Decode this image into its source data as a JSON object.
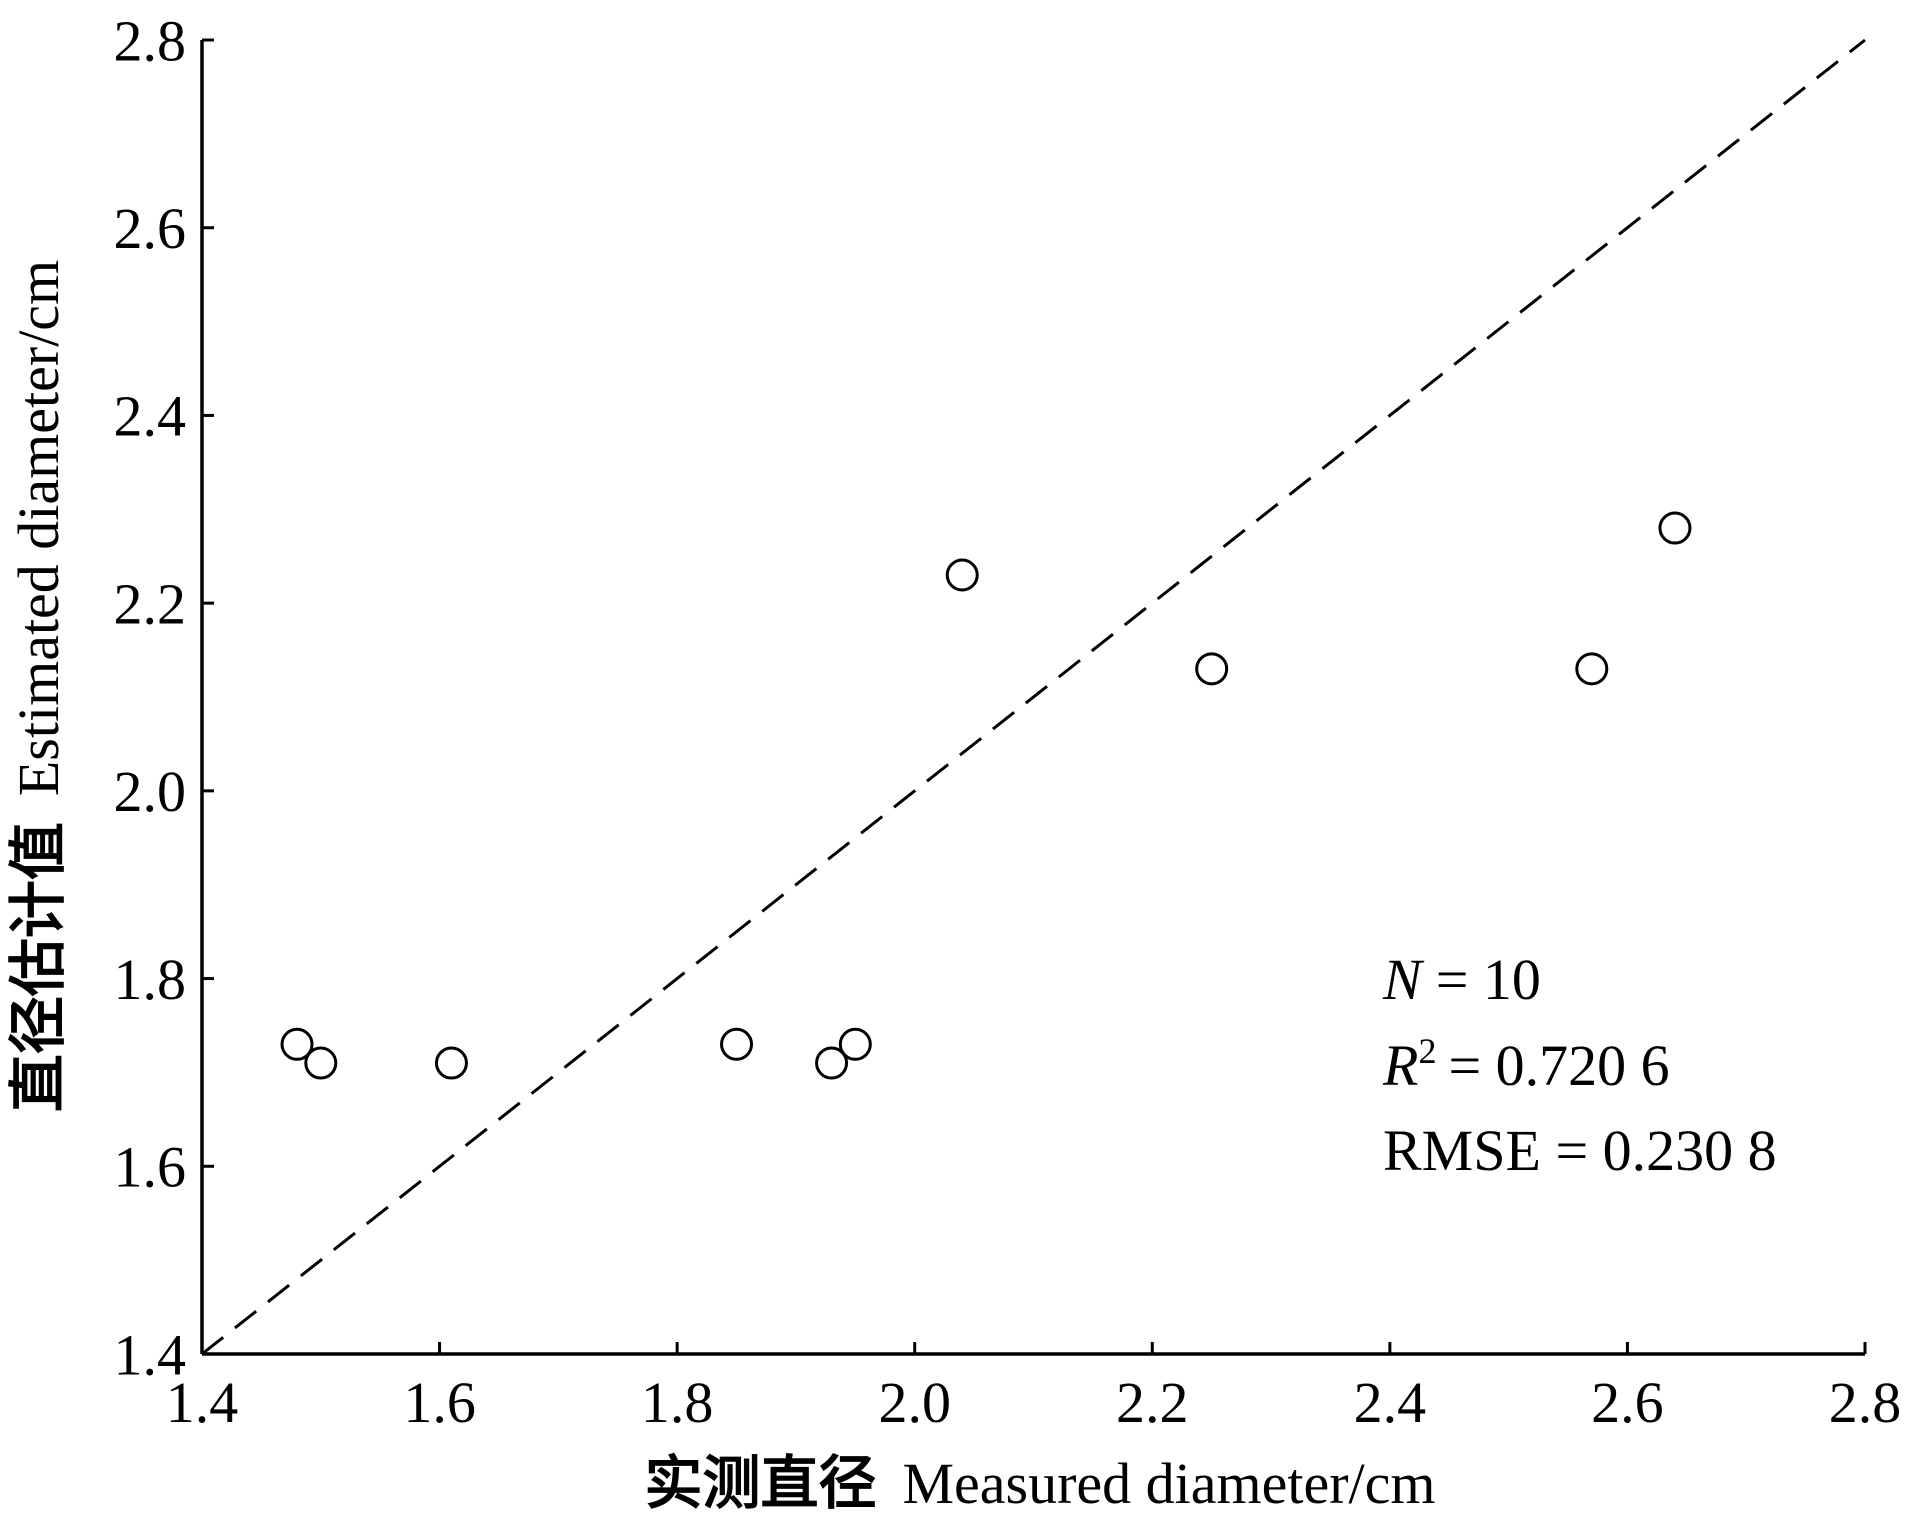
{
  "chart_data": {
    "type": "scatter",
    "x": [
      1.48,
      1.5,
      1.61,
      1.85,
      1.93,
      1.95,
      2.04,
      2.25,
      2.57,
      2.64
    ],
    "y": [
      1.73,
      1.71,
      1.71,
      1.73,
      1.71,
      1.73,
      2.23,
      2.13,
      2.13,
      2.28
    ],
    "xlim": [
      1.4,
      2.8
    ],
    "ylim": [
      1.4,
      2.8
    ],
    "xticks": [
      "1.4",
      "1.6",
      "1.8",
      "2.0",
      "2.2",
      "2.4",
      "2.6",
      "2.8"
    ],
    "yticks": [
      "1.4",
      "1.6",
      "1.8",
      "2.0",
      "2.2",
      "2.4",
      "2.6",
      "2.8"
    ],
    "xlabel": {
      "cn": "实测直径",
      "en": "Measured diameter/cm"
    },
    "ylabel": {
      "cn": "直径估计值",
      "en": "Estimated diameter/cm"
    },
    "reference_line": {
      "style": "dashed",
      "x": [
        1.4,
        2.8
      ],
      "y": [
        1.4,
        2.8
      ]
    },
    "marker": "open-circle",
    "grid": false,
    "annotations": {
      "n_symbol": "N",
      "n_value": "= 10",
      "r_symbol": "R",
      "r_sup": "2",
      "r_value": "= 0.720 6",
      "rmse": "RMSE = 0.230 8"
    },
    "colors": {
      "ink": "#000000",
      "marker_fill": "#ffffff"
    }
  }
}
